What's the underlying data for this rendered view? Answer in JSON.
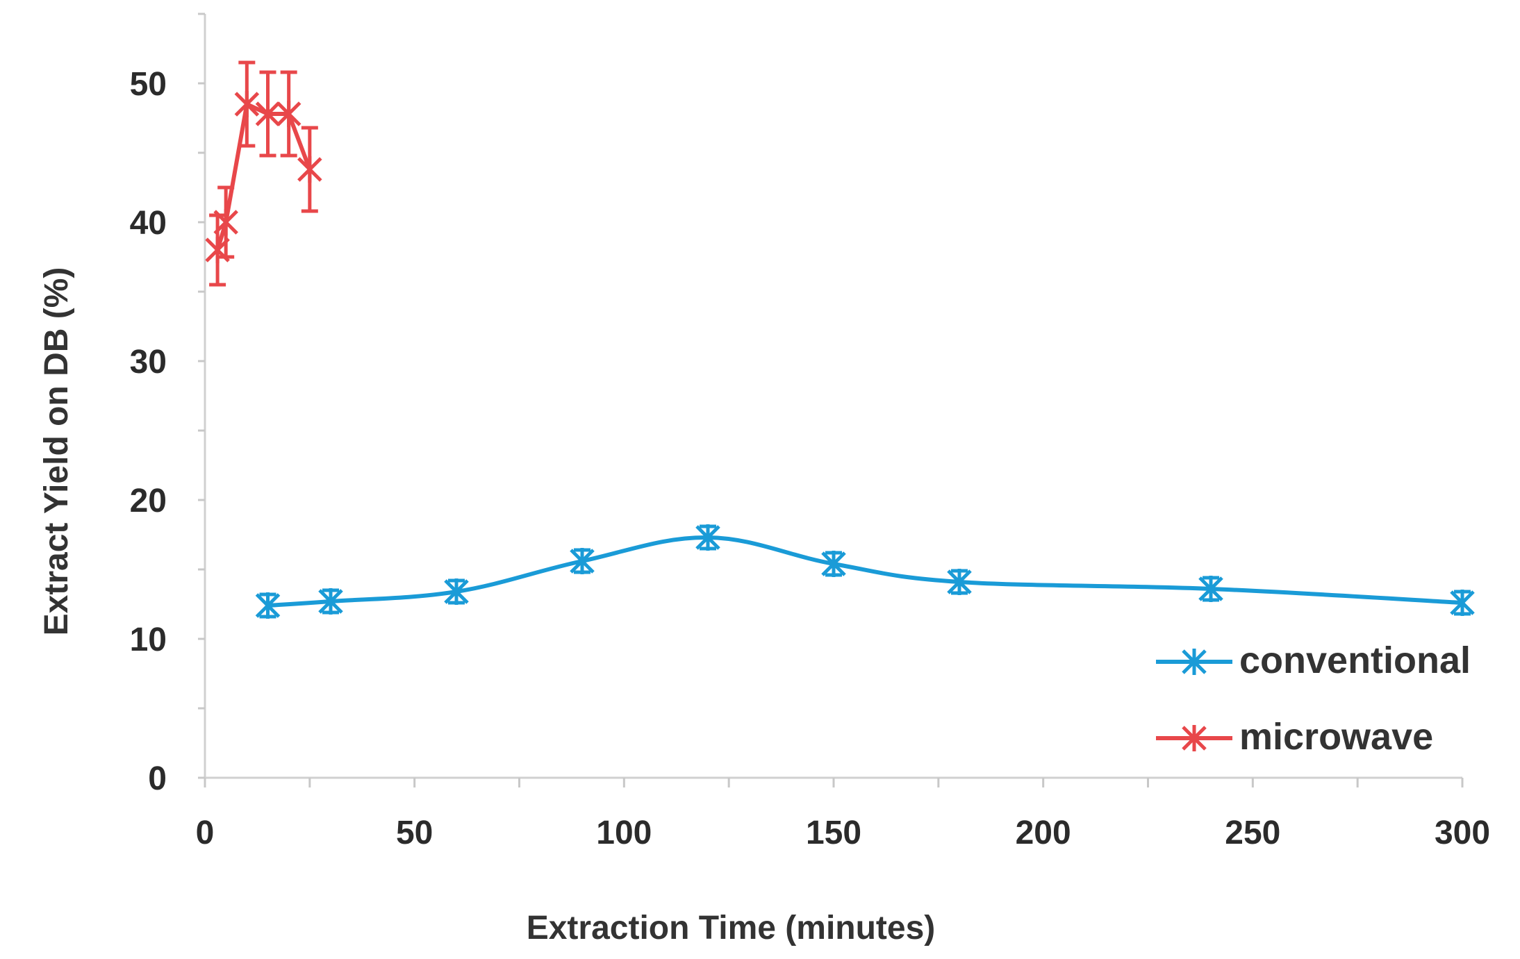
{
  "chart_data": {
    "type": "line",
    "title": "",
    "xlabel": "Extraction Time (minutes)",
    "ylabel": "Extract Yield on DB (%)",
    "xlim": [
      0,
      300
    ],
    "ylim": [
      0,
      55
    ],
    "xticks": [
      "0",
      "50",
      "100",
      "150",
      "200",
      "250",
      "300"
    ],
    "yticks": [
      "0",
      "10",
      "20",
      "30",
      "40",
      "50"
    ],
    "grid": false,
    "legend_position": "bottom-right",
    "series": [
      {
        "name": "conventional",
        "color": "#1a9bd7",
        "marker": "asterisk",
        "smooth": true,
        "x": [
          15,
          30,
          60,
          90,
          120,
          150,
          180,
          240,
          300
        ],
        "y": [
          12.4,
          12.7,
          13.4,
          15.6,
          17.3,
          15.4,
          14.1,
          13.6,
          12.6
        ],
        "error": [
          0.8,
          0.8,
          0.8,
          0.8,
          0.8,
          0.8,
          0.8,
          0.8,
          0.8
        ]
      },
      {
        "name": "microwave",
        "color": "#e8474a",
        "marker": "asterisk",
        "smooth": false,
        "x": [
          3,
          5,
          10,
          15,
          20,
          25
        ],
        "y": [
          38,
          40,
          48.5,
          47.8,
          47.8,
          43.8
        ],
        "error": [
          2.5,
          2.5,
          3,
          3,
          3,
          3
        ]
      }
    ]
  }
}
